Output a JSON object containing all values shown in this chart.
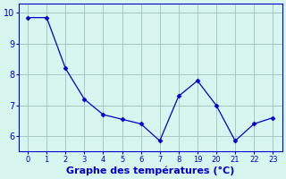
{
  "x_indices": [
    0,
    1,
    2,
    3,
    4,
    5,
    6,
    7,
    8,
    9,
    10,
    11,
    12,
    13
  ],
  "x_labels": [
    "0",
    "1",
    "2",
    "3",
    "4",
    "5",
    "6",
    "7",
    "8",
    "19",
    "20",
    "21",
    "22",
    "23"
  ],
  "y": [
    9.85,
    9.85,
    8.2,
    7.2,
    6.7,
    6.55,
    6.4,
    5.85,
    7.3,
    7.8,
    7.0,
    5.85,
    6.4,
    6.6
  ],
  "line_color": "#0000cc",
  "marker": "D",
  "marker_size": 2.5,
  "bg_color": "#d8f5ef",
  "grid_color": "#a8c8c4",
  "axis_color": "#0000cc",
  "xlabel": "Graphe des températures (°C)",
  "xlabel_fontsize": 8,
  "ylim": [
    5.5,
    10.3
  ],
  "yticks": [
    6,
    7,
    8,
    9,
    10
  ],
  "tick_label_fontsize": 7,
  "xtick_fontsize": 6
}
